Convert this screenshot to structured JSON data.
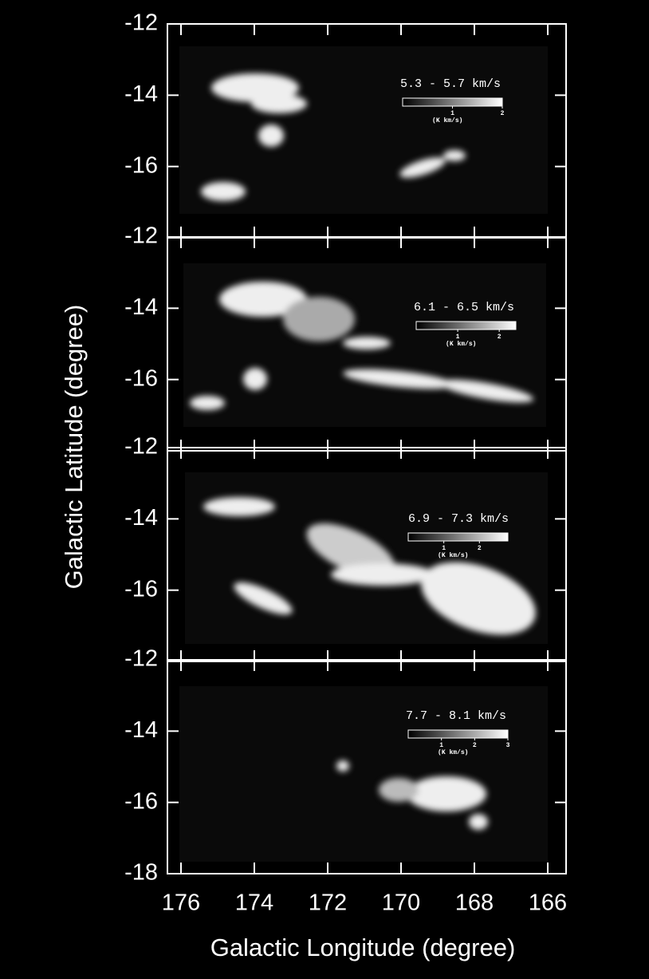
{
  "chart_data": [
    {
      "type": "image",
      "title": "5.3 - 5.7 km/s",
      "ylabel": "Galactic Latitude  (degree)",
      "xlim": [
        176,
        166
      ],
      "ylim": [
        -12,
        -18
      ],
      "yticks": [
        -12,
        -14,
        -16
      ],
      "colorbar_lim": [
        0,
        2
      ],
      "colorbar_ticks": [
        1,
        2
      ],
      "colorbar_label": "(K km/s)"
    },
    {
      "type": "image",
      "title": "6.1 - 6.5 km/s",
      "xlim": [
        176,
        166
      ],
      "ylim": [
        -12,
        -18
      ],
      "yticks": [
        -12,
        -14,
        -16
      ],
      "colorbar_lim": [
        0,
        2.4
      ],
      "colorbar_ticks": [
        1,
        2
      ],
      "colorbar_label": "(K km/s)"
    },
    {
      "type": "image",
      "title": "6.9 - 7.3 km/s",
      "xlim": [
        176,
        166
      ],
      "ylim": [
        -12,
        -18
      ],
      "yticks": [
        -12,
        -14,
        -16
      ],
      "colorbar_lim": [
        0,
        2.8
      ],
      "colorbar_ticks": [
        1,
        2
      ],
      "colorbar_label": "(K km/s)"
    },
    {
      "type": "image",
      "title": "7.7 - 8.1 km/s",
      "xlabel": "Galactic Longitude  (degree)",
      "xlim": [
        176,
        166
      ],
      "ylim": [
        -12,
        -18
      ],
      "yticks": [
        -12,
        -14,
        -16,
        -18
      ],
      "xticks": [
        176,
        174,
        172,
        170,
        168,
        166
      ],
      "colorbar_lim": [
        0,
        3
      ],
      "colorbar_ticks": [
        1,
        2,
        3
      ],
      "colorbar_label": "(K km/s)"
    }
  ]
}
